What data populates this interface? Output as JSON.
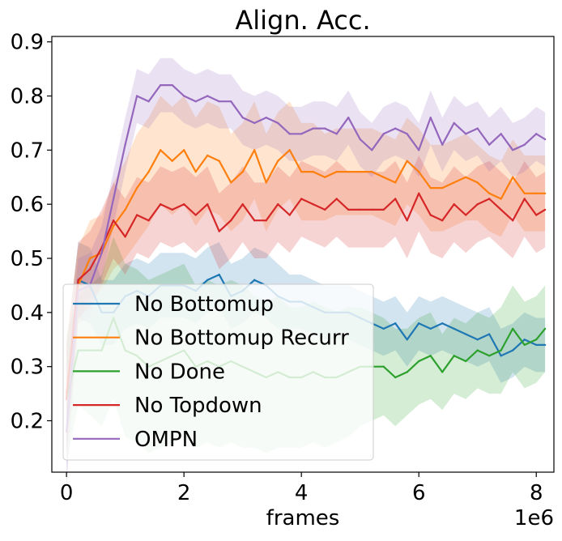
{
  "chart_data": {
    "type": "line",
    "title": "Align. Acc.",
    "xlabel": "frames",
    "x_offset_text": "1e6",
    "ylabel": "",
    "xlim": [
      -0.25,
      8.3
    ],
    "ylim": [
      0.105,
      0.91
    ],
    "x_ticks": [
      0,
      2,
      4,
      6,
      8
    ],
    "x_tick_labels": [
      "0",
      "2",
      "4",
      "6",
      "8"
    ],
    "y_ticks": [
      0.2,
      0.3,
      0.4,
      0.5,
      0.6,
      0.7,
      0.8,
      0.9
    ],
    "y_tick_labels": [
      "0.2",
      "0.3",
      "0.4",
      "0.5",
      "0.6",
      "0.7",
      "0.8",
      "0.9"
    ],
    "grid": false,
    "legend_position": "lower-left",
    "x": [
      0,
      0.2,
      0.4,
      0.6,
      0.8,
      1.0,
      1.2,
      1.4,
      1.6,
      1.8,
      2.0,
      2.2,
      2.4,
      2.6,
      2.8,
      3.0,
      3.2,
      3.4,
      3.6,
      3.8,
      4.0,
      4.2,
      4.4,
      4.6,
      4.8,
      5.0,
      5.2,
      5.4,
      5.6,
      5.8,
      6.0,
      6.2,
      6.4,
      6.6,
      6.8,
      7.0,
      7.2,
      7.4,
      7.6,
      7.8,
      8.0,
      8.15
    ],
    "series": [
      {
        "name": "No Bottomup",
        "color": "#1f77b4",
        "values": [
          0.24,
          0.46,
          0.45,
          0.4,
          0.4,
          0.43,
          0.44,
          0.43,
          0.45,
          0.45,
          0.45,
          0.44,
          0.46,
          0.47,
          0.43,
          0.44,
          0.46,
          0.45,
          0.43,
          0.42,
          0.42,
          0.41,
          0.4,
          0.4,
          0.4,
          0.39,
          0.38,
          0.37,
          0.38,
          0.35,
          0.38,
          0.37,
          0.38,
          0.37,
          0.36,
          0.35,
          0.36,
          0.32,
          0.33,
          0.35,
          0.34,
          0.34
        ],
        "band": [
          0.1,
          0.07,
          0.07,
          0.06,
          0.06,
          0.06,
          0.06,
          0.06,
          0.06,
          0.06,
          0.06,
          0.06,
          0.06,
          0.06,
          0.06,
          0.06,
          0.06,
          0.06,
          0.06,
          0.05,
          0.05,
          0.05,
          0.05,
          0.05,
          0.05,
          0.05,
          0.05,
          0.05,
          0.05,
          0.05,
          0.05,
          0.05,
          0.05,
          0.05,
          0.05,
          0.05,
          0.05,
          0.05,
          0.05,
          0.05,
          0.05,
          0.05
        ]
      },
      {
        "name": "No Bottomup Recurr",
        "color": "#ff7f0e",
        "values": [
          0.25,
          0.45,
          0.5,
          0.51,
          0.56,
          0.59,
          0.63,
          0.66,
          0.7,
          0.68,
          0.7,
          0.66,
          0.69,
          0.68,
          0.64,
          0.66,
          0.7,
          0.64,
          0.68,
          0.7,
          0.66,
          0.66,
          0.65,
          0.66,
          0.66,
          0.66,
          0.66,
          0.65,
          0.64,
          0.68,
          0.66,
          0.63,
          0.63,
          0.64,
          0.65,
          0.64,
          0.62,
          0.61,
          0.65,
          0.62,
          0.62,
          0.62
        ],
        "band": [
          0.1,
          0.07,
          0.07,
          0.07,
          0.08,
          0.09,
          0.1,
          0.1,
          0.1,
          0.1,
          0.1,
          0.1,
          0.1,
          0.1,
          0.09,
          0.09,
          0.09,
          0.09,
          0.09,
          0.09,
          0.09,
          0.09,
          0.08,
          0.08,
          0.08,
          0.08,
          0.08,
          0.08,
          0.08,
          0.08,
          0.08,
          0.08,
          0.08,
          0.08,
          0.08,
          0.07,
          0.07,
          0.07,
          0.07,
          0.07,
          0.07,
          0.07
        ]
      },
      {
        "name": "No Done",
        "color": "#2ca02c",
        "values": [
          0.24,
          0.33,
          0.33,
          0.33,
          0.39,
          0.33,
          0.32,
          0.3,
          0.31,
          0.32,
          0.33,
          0.3,
          0.31,
          0.3,
          0.31,
          0.3,
          0.29,
          0.28,
          0.29,
          0.28,
          0.28,
          0.29,
          0.28,
          0.28,
          0.29,
          0.3,
          0.3,
          0.3,
          0.28,
          0.29,
          0.31,
          0.32,
          0.29,
          0.32,
          0.31,
          0.33,
          0.32,
          0.33,
          0.37,
          0.34,
          0.35,
          0.37
        ],
        "band": [
          0.12,
          0.1,
          0.12,
          0.14,
          0.15,
          0.16,
          0.16,
          0.16,
          0.16,
          0.16,
          0.16,
          0.15,
          0.15,
          0.15,
          0.15,
          0.15,
          0.14,
          0.14,
          0.14,
          0.13,
          0.13,
          0.13,
          0.13,
          0.12,
          0.12,
          0.11,
          0.1,
          0.09,
          0.09,
          0.08,
          0.08,
          0.08,
          0.07,
          0.07,
          0.07,
          0.07,
          0.07,
          0.08,
          0.08,
          0.08,
          0.08,
          0.08
        ]
      },
      {
        "name": "No Topdown",
        "color": "#d62728",
        "values": [
          0.24,
          0.46,
          0.48,
          0.52,
          0.57,
          0.54,
          0.58,
          0.57,
          0.6,
          0.59,
          0.6,
          0.58,
          0.6,
          0.55,
          0.57,
          0.6,
          0.57,
          0.57,
          0.6,
          0.58,
          0.61,
          0.6,
          0.59,
          0.61,
          0.59,
          0.59,
          0.59,
          0.59,
          0.61,
          0.57,
          0.62,
          0.58,
          0.57,
          0.6,
          0.58,
          0.6,
          0.61,
          0.59,
          0.57,
          0.61,
          0.58,
          0.59
        ],
        "band": [
          0.1,
          0.07,
          0.07,
          0.07,
          0.07,
          0.07,
          0.07,
          0.07,
          0.07,
          0.07,
          0.07,
          0.07,
          0.07,
          0.07,
          0.07,
          0.07,
          0.07,
          0.07,
          0.07,
          0.07,
          0.07,
          0.07,
          0.07,
          0.07,
          0.07,
          0.07,
          0.07,
          0.07,
          0.07,
          0.07,
          0.07,
          0.07,
          0.07,
          0.07,
          0.07,
          0.07,
          0.07,
          0.07,
          0.07,
          0.07,
          0.07,
          0.07
        ]
      },
      {
        "name": "OMPN",
        "color": "#9467bd",
        "values": [
          0.18,
          0.44,
          0.45,
          0.51,
          0.61,
          0.71,
          0.8,
          0.79,
          0.82,
          0.82,
          0.8,
          0.79,
          0.8,
          0.79,
          0.79,
          0.76,
          0.75,
          0.76,
          0.75,
          0.73,
          0.73,
          0.74,
          0.74,
          0.73,
          0.76,
          0.72,
          0.7,
          0.73,
          0.74,
          0.73,
          0.7,
          0.76,
          0.71,
          0.75,
          0.73,
          0.74,
          0.71,
          0.73,
          0.7,
          0.71,
          0.73,
          0.72
        ],
        "band": [
          0.1,
          0.06,
          0.06,
          0.05,
          0.05,
          0.05,
          0.05,
          0.05,
          0.05,
          0.05,
          0.05,
          0.05,
          0.05,
          0.05,
          0.05,
          0.05,
          0.05,
          0.05,
          0.05,
          0.05,
          0.05,
          0.05,
          0.05,
          0.05,
          0.05,
          0.05,
          0.05,
          0.05,
          0.05,
          0.05,
          0.05,
          0.05,
          0.05,
          0.05,
          0.05,
          0.05,
          0.05,
          0.05,
          0.05,
          0.05,
          0.05,
          0.05
        ]
      }
    ]
  }
}
